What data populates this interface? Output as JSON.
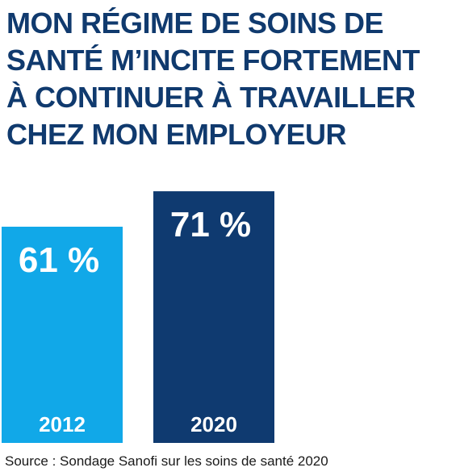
{
  "chart_data": {
    "type": "bar",
    "title_lines": [
      "MON RÉGIME DE SOINS DE",
      "SANTÉ M’INCITE FORTEMENT",
      "À CONTINUER À TRAVAILLER",
      "CHEZ MON EMPLOYEUR"
    ],
    "categories": [
      "2012",
      "2020"
    ],
    "values": [
      61,
      71
    ],
    "value_labels": [
      "61 %",
      "71 %"
    ],
    "unit": "%",
    "colors": [
      "#11a8e8",
      "#0f3a70"
    ],
    "source": "Source : Sondage Sanofi sur les soins de santé 2020"
  }
}
